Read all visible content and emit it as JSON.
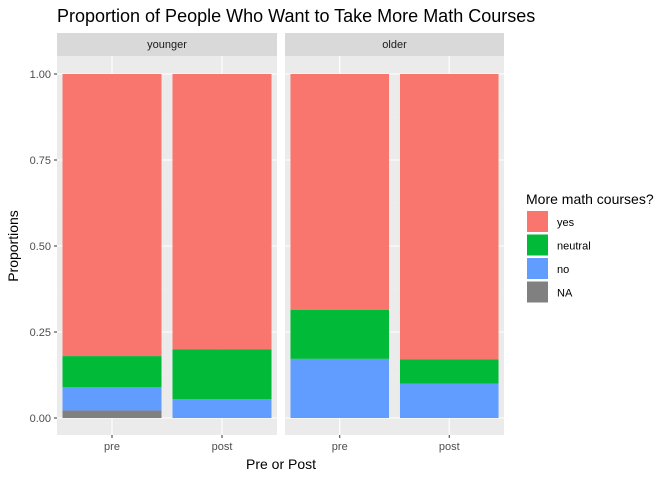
{
  "chart_data": {
    "type": "bar",
    "stacked": true,
    "title": "Proportion of People Who Want to Take More Math Courses",
    "xlabel": "Pre or Post",
    "ylabel": "Proportions",
    "ylim": [
      0,
      1
    ],
    "yticks": [
      "0.00",
      "0.25",
      "0.50",
      "0.75",
      "1.00"
    ],
    "ytick_values": [
      0,
      0.25,
      0.5,
      0.75,
      1.0
    ],
    "grid": true,
    "panel_background": "#ebebeb",
    "strip_background": "#d9d9d9",
    "legend": {
      "title": "More math courses?",
      "position": "right",
      "entries": [
        {
          "label": "yes",
          "color": "#F8766D"
        },
        {
          "label": "neutral",
          "color": "#00BA38"
        },
        {
          "label": "no",
          "color": "#619CFF"
        },
        {
          "label": "NA",
          "color": "#808080"
        }
      ]
    },
    "stack_order_bottom_to_top": [
      "NA",
      "no",
      "neutral",
      "yes"
    ],
    "facets": [
      {
        "name": "younger",
        "categories": [
          "pre",
          "post"
        ],
        "bars": [
          {
            "category": "pre",
            "segments": {
              "NA": 0.022,
              "no": 0.068,
              "neutral": 0.09,
              "yes": 0.82
            }
          },
          {
            "category": "post",
            "segments": {
              "NA": 0,
              "no": 0.055,
              "neutral": 0.145,
              "yes": 0.8
            }
          }
        ]
      },
      {
        "name": "older",
        "categories": [
          "pre",
          "post"
        ],
        "bars": [
          {
            "category": "pre",
            "segments": {
              "NA": 0,
              "no": 0.172,
              "neutral": 0.142,
              "yes": 0.686
            }
          },
          {
            "category": "post",
            "segments": {
              "NA": 0,
              "no": 0.1,
              "neutral": 0.07,
              "yes": 0.83
            }
          }
        ]
      }
    ]
  }
}
